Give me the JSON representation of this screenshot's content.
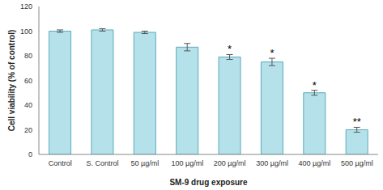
{
  "chart_data": {
    "type": "bar",
    "y_label": "Cell viability (% of control)",
    "x_label": "SM-9 drug exposure",
    "categories": [
      "Control",
      "S. Control",
      "50 µg/ml",
      "100 µg/ml",
      "200 µg/ml",
      "300 µg/ml",
      "400 µg/ml",
      "500 µg/ml"
    ],
    "values": [
      100,
      101,
      99,
      87,
      79,
      75,
      50,
      20
    ],
    "errors": [
      1,
      1,
      1,
      3,
      2,
      3,
      2,
      2
    ],
    "annotations": [
      {
        "category": "200 µg/ml",
        "text": "*"
      },
      {
        "category": "300 µg/ml",
        "text": "*"
      },
      {
        "category": "400 µg/ml",
        "text": "*"
      },
      {
        "category": "500 µg/ml",
        "text": "**"
      }
    ],
    "color": "#b5e2ea",
    "ylim": [
      0,
      120
    ],
    "yticks": [
      0,
      20,
      40,
      60,
      80,
      100,
      120
    ],
    "grid": false
  }
}
